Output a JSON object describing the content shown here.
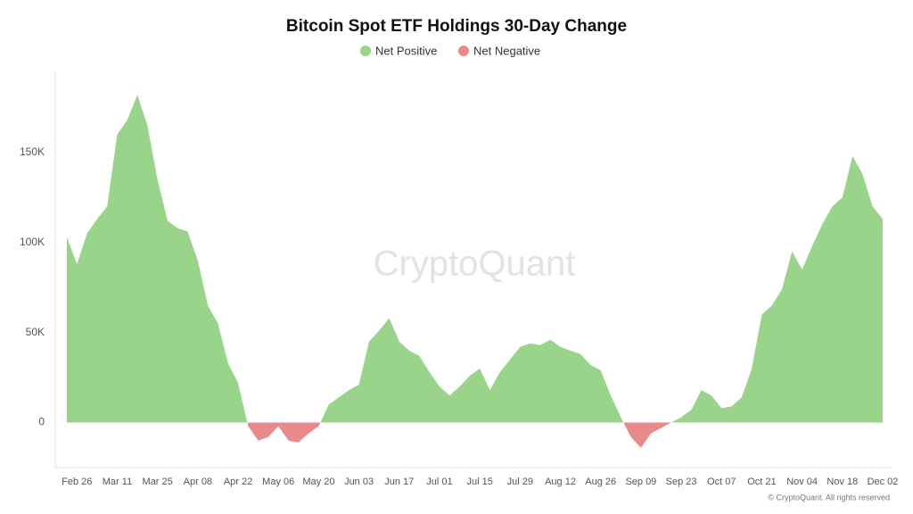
{
  "chart_data": {
    "type": "area",
    "title": "Bitcoin Spot ETF Holdings 30-Day Change",
    "watermark": "CryptoQuant",
    "credit": "© CryptoQuant. All rights reserved",
    "legend": [
      {
        "name": "Net Positive",
        "color": "#9ad38a"
      },
      {
        "name": "Net Negative",
        "color": "#e88a8a"
      }
    ],
    "positive_color": "#9ad38a",
    "negative_color": "#e88a8a",
    "legend_position": "top",
    "categories": [
      null,
      "Feb 26",
      null,
      null,
      null,
      "Mar 11",
      null,
      null,
      null,
      "Mar 25",
      null,
      null,
      null,
      "Apr 08",
      null,
      null,
      null,
      "Apr 22",
      null,
      null,
      null,
      "May 06",
      null,
      null,
      null,
      "May 20",
      null,
      null,
      null,
      "Jun 03",
      null,
      null,
      null,
      "Jun 17",
      null,
      null,
      null,
      "Jul 01",
      null,
      null,
      null,
      "Jul 15",
      null,
      null,
      null,
      "Jul 29",
      null,
      null,
      null,
      "Aug 12",
      null,
      null,
      null,
      "Aug 26",
      null,
      null,
      null,
      "Sep 09",
      null,
      null,
      null,
      "Sep 23",
      null,
      null,
      null,
      "Oct 07",
      null,
      null,
      null,
      "Oct 21",
      null,
      null,
      null,
      "Nov 04",
      null,
      null,
      null,
      "Nov 18",
      null,
      null,
      null,
      "Dec 02"
    ],
    "values": [
      103000,
      88000,
      105000,
      113000,
      120000,
      160000,
      168000,
      182000,
      165000,
      135000,
      112000,
      108000,
      106000,
      90000,
      65000,
      55000,
      33000,
      22000,
      -2000,
      -10000,
      -8000,
      -2000,
      -10000,
      -11000,
      -6000,
      -2000,
      10000,
      14000,
      18000,
      21000,
      45000,
      51000,
      58000,
      45000,
      40000,
      37000,
      28000,
      20000,
      15000,
      20000,
      26000,
      30000,
      18000,
      28000,
      35000,
      42000,
      44000,
      43000,
      46000,
      42000,
      40000,
      38000,
      32000,
      29000,
      15000,
      3000,
      -8000,
      -14000,
      -6000,
      -3000,
      0,
      3000,
      7000,
      18000,
      15000,
      8000,
      9000,
      14000,
      30000,
      60000,
      65000,
      74000,
      95000,
      85000,
      98000,
      110000,
      120000,
      125000,
      148000,
      138000,
      120000,
      113000
    ],
    "ylim": [
      -25000,
      195000
    ],
    "yticks": [
      0,
      {
        "value": 50000,
        "label": "50K"
      },
      {
        "value": 100000,
        "label": "100K"
      },
      {
        "value": 150000,
        "label": "150K"
      }
    ],
    "grid": false
  }
}
